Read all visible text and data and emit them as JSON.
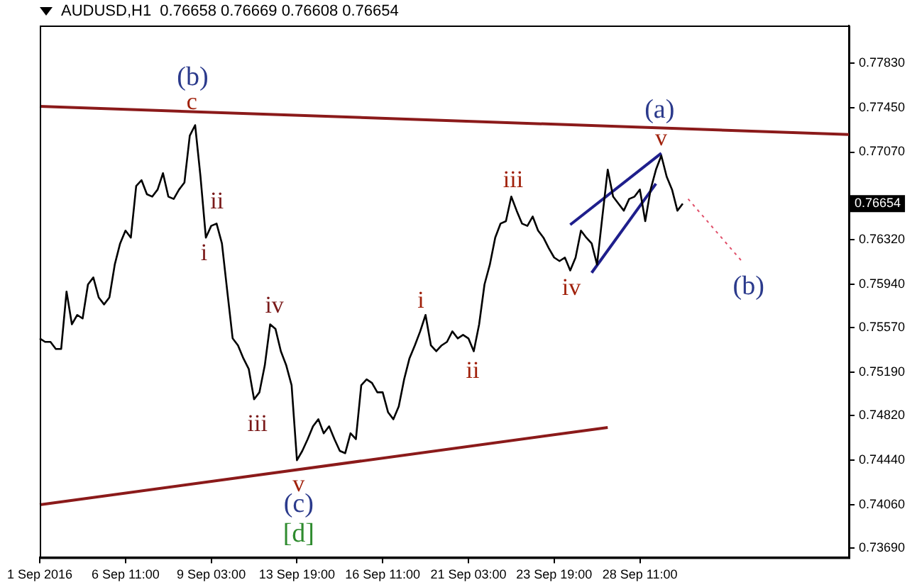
{
  "chart_data": {
    "type": "line",
    "title": "AUDUSD,H1  0.76658 0.76669 0.76608 0.76654",
    "categories": [
      "1 Sep 2016",
      null,
      null,
      null,
      null,
      null,
      null,
      null,
      null,
      null,
      null,
      null,
      null,
      null,
      null,
      null,
      "6 Sep 11:00",
      null,
      null,
      null,
      null,
      null,
      null,
      null,
      null,
      null,
      null,
      null,
      null,
      null,
      null,
      null,
      "9 Sep 03:00",
      null,
      null,
      null,
      null,
      null,
      null,
      null,
      null,
      null,
      null,
      null,
      null,
      null,
      null,
      null,
      "13 Sep 19:00",
      null,
      null,
      null,
      null,
      null,
      null,
      null,
      null,
      null,
      null,
      null,
      null,
      null,
      null,
      null,
      "16 Sep 11:00",
      null,
      null,
      null,
      null,
      null,
      null,
      null,
      null,
      null,
      null,
      null,
      null,
      null,
      null,
      null,
      "21 Sep 03:00",
      null,
      null,
      null,
      null,
      null,
      null,
      null,
      null,
      null,
      null,
      null,
      null,
      null,
      null,
      null,
      "23 Sep 19:00",
      null,
      null,
      null,
      null,
      null,
      null,
      null,
      null,
      null,
      null,
      null,
      null,
      null,
      null,
      null,
      "28 Sep 11:00",
      null,
      null,
      null,
      null,
      null,
      null,
      null,
      null,
      null,
      null,
      null,
      null,
      null,
      null,
      null,
      null,
      null,
      null,
      null,
      null,
      null,
      null,
      null,
      null,
      null,
      null,
      null,
      null,
      null,
      null,
      null,
      null,
      null,
      null,
      null,
      null,
      null,
      null,
      null
    ],
    "ylim": [
      0.7361,
      0.7815
    ],
    "yticks": [
      {
        "value": 0.7783,
        "label": "0.77830"
      },
      {
        "value": 0.7745,
        "label": "0.77450"
      },
      {
        "value": 0.7707,
        "label": "0.77070"
      },
      {
        "value": 0.7669,
        "label": null
      },
      {
        "value": 0.7632,
        "label": "0.76320"
      },
      {
        "value": 0.7594,
        "label": "0.75940"
      },
      {
        "value": 0.7557,
        "label": "0.75570"
      },
      {
        "value": 0.7519,
        "label": "0.75190"
      },
      {
        "value": 0.7482,
        "label": "0.74820"
      },
      {
        "value": 0.7444,
        "label": "0.74440"
      },
      {
        "value": 0.7406,
        "label": "0.74060"
      },
      {
        "value": 0.7369,
        "label": "0.73690"
      }
    ],
    "grid": false,
    "legend": false,
    "marker": "none",
    "series": [
      {
        "color": "#000000",
        "values": [
          0.7548,
          0.7545,
          0.7545,
          0.7539,
          0.7539,
          0.7588,
          0.756,
          0.7568,
          0.7565,
          0.7594,
          0.76,
          0.7583,
          0.7577,
          0.7583,
          0.7611,
          0.7629,
          0.764,
          0.7634,
          0.7678,
          0.7683,
          0.7671,
          0.7669,
          0.7675,
          0.7689,
          0.7669,
          0.7667,
          0.7675,
          0.7681,
          0.7721,
          0.773,
          0.7686,
          0.7634,
          0.7644,
          0.7646,
          0.7629,
          0.7588,
          0.7548,
          0.7542,
          0.7531,
          0.7522,
          0.7496,
          0.7502,
          0.7525,
          0.756,
          0.7556,
          0.7537,
          0.7525,
          0.7508,
          0.7444,
          0.7452,
          0.7462,
          0.7473,
          0.7479,
          0.7467,
          0.7473,
          0.7462,
          0.7452,
          0.745,
          0.7467,
          0.7462,
          0.7508,
          0.7513,
          0.751,
          0.7502,
          0.7502,
          0.7485,
          0.7479,
          0.749,
          0.7513,
          0.7531,
          0.7542,
          0.7554,
          0.7568,
          0.7542,
          0.7537,
          0.7542,
          0.7545,
          0.7554,
          0.7548,
          0.7551,
          0.7548,
          0.7537,
          0.756,
          0.7594,
          0.7611,
          0.7634,
          0.7646,
          0.7648,
          0.7669,
          0.7657,
          0.7646,
          0.7644,
          0.7652,
          0.764,
          0.7634,
          0.7625,
          0.7617,
          0.7614,
          0.7617,
          0.7606,
          0.7617,
          0.764,
          0.7634,
          0.7629,
          0.7611,
          0.7652,
          0.7692,
          0.7669,
          0.7663,
          0.7657,
          0.7667,
          0.7669,
          0.7675,
          0.7648,
          0.7675,
          0.7692,
          0.7704,
          0.7686,
          0.7675,
          0.7657,
          0.7663,
          null,
          null,
          null,
          null,
          null,
          null,
          null,
          null,
          null,
          null,
          null,
          null,
          null,
          null,
          null,
          null,
          null,
          null,
          null,
          null,
          null,
          null,
          null,
          null,
          null,
          null,
          null,
          null,
          null,
          null,
          null
        ]
      },
      {
        "type": "line",
        "color": "#8b1a1a",
        "values": [
          0.7746,
          null,
          null,
          null,
          null,
          null,
          null,
          null,
          null,
          null,
          null,
          null,
          null,
          null,
          null,
          null,
          null,
          null,
          null,
          null,
          null,
          null,
          null,
          null,
          null,
          null,
          null,
          null,
          null,
          null,
          null,
          null,
          null,
          null,
          null,
          null,
          null,
          null,
          null,
          null,
          null,
          null,
          null,
          null,
          null,
          null,
          null,
          null,
          null,
          null,
          null,
          null,
          null,
          null,
          null,
          null,
          null,
          null,
          null,
          null,
          null,
          null,
          null,
          null,
          null,
          null,
          null,
          null,
          null,
          null,
          null,
          null,
          null,
          null,
          null,
          null,
          null,
          null,
          null,
          null,
          null,
          null,
          null,
          null,
          null,
          null,
          null,
          null,
          null,
          null,
          null,
          null,
          null,
          null,
          null,
          null,
          null,
          null,
          null,
          null,
          null,
          null,
          null,
          null,
          null,
          null,
          null,
          null,
          null,
          null,
          null,
          null,
          null,
          null,
          null,
          null,
          null,
          null,
          null,
          null,
          null,
          null,
          null,
          null,
          null,
          null,
          null,
          null,
          null,
          null,
          null,
          null,
          null,
          null,
          null,
          null,
          null,
          null,
          null,
          null,
          null,
          null,
          null,
          null,
          null,
          null,
          null,
          null,
          null,
          null,
          null,
          0.7722
        ]
      },
      {
        "type": "line",
        "color": "#8b1a1a",
        "values": [
          0.7406,
          null,
          null,
          null,
          null,
          null,
          null,
          null,
          null,
          null,
          null,
          null,
          null,
          null,
          null,
          null,
          null,
          null,
          null,
          null,
          null,
          null,
          null,
          null,
          null,
          null,
          null,
          null,
          null,
          null,
          null,
          null,
          null,
          null,
          null,
          null,
          null,
          null,
          null,
          null,
          null,
          null,
          null,
          null,
          null,
          null,
          null,
          null,
          null,
          null,
          null,
          null,
          null,
          null,
          null,
          null,
          null,
          null,
          null,
          null,
          null,
          null,
          null,
          null,
          null,
          null,
          null,
          null,
          null,
          null,
          null,
          null,
          null,
          null,
          null,
          null,
          null,
          null,
          null,
          null,
          null,
          null,
          null,
          null,
          null,
          null,
          null,
          null,
          null,
          null,
          null,
          null,
          null,
          null,
          null,
          null,
          null,
          null,
          null,
          null,
          null,
          null,
          null,
          null,
          null,
          null,
          0.7472,
          null,
          null,
          null,
          null,
          null,
          null,
          null,
          null,
          null,
          null,
          null,
          null,
          null,
          null,
          null,
          null,
          null,
          null,
          null,
          null,
          null,
          null,
          null,
          null,
          null,
          null,
          null,
          null,
          null,
          null,
          null,
          null,
          null,
          null,
          null,
          null,
          null,
          null,
          null,
          null,
          null,
          null,
          null,
          null,
          null
        ]
      },
      {
        "type": "line",
        "color": "#1e1e8c",
        "values": [
          null,
          null,
          null,
          null,
          null,
          null,
          null,
          null,
          null,
          null,
          null,
          null,
          null,
          null,
          null,
          null,
          null,
          null,
          null,
          null,
          null,
          null,
          null,
          null,
          null,
          null,
          null,
          null,
          null,
          null,
          null,
          null,
          null,
          null,
          null,
          null,
          null,
          null,
          null,
          null,
          null,
          null,
          null,
          null,
          null,
          null,
          null,
          null,
          null,
          null,
          null,
          null,
          null,
          null,
          null,
          null,
          null,
          null,
          null,
          null,
          null,
          null,
          null,
          null,
          null,
          null,
          null,
          null,
          null,
          null,
          null,
          null,
          null,
          null,
          null,
          null,
          null,
          null,
          null,
          null,
          null,
          null,
          null,
          null,
          null,
          null,
          null,
          null,
          null,
          null,
          null,
          null,
          null,
          null,
          null,
          null,
          null,
          null,
          null,
          0.7645,
          null,
          null,
          null,
          null,
          null,
          null,
          null,
          null,
          null,
          null,
          null,
          null,
          null,
          null,
          null,
          null,
          0.7706,
          null,
          null,
          null,
          null,
          null,
          null,
          null,
          null,
          null,
          null,
          null,
          null,
          null,
          null,
          null,
          null,
          null,
          null,
          null,
          null,
          null,
          null,
          null,
          null,
          null,
          null,
          null,
          null,
          null,
          null,
          null,
          null,
          null,
          null,
          null
        ]
      },
      {
        "type": "line",
        "color": "#1e1e8c",
        "values": [
          null,
          null,
          null,
          null,
          null,
          null,
          null,
          null,
          null,
          null,
          null,
          null,
          null,
          null,
          null,
          null,
          null,
          null,
          null,
          null,
          null,
          null,
          null,
          null,
          null,
          null,
          null,
          null,
          null,
          null,
          null,
          null,
          null,
          null,
          null,
          null,
          null,
          null,
          null,
          null,
          null,
          null,
          null,
          null,
          null,
          null,
          null,
          null,
          null,
          null,
          null,
          null,
          null,
          null,
          null,
          null,
          null,
          null,
          null,
          null,
          null,
          null,
          null,
          null,
          null,
          null,
          null,
          null,
          null,
          null,
          null,
          null,
          null,
          null,
          null,
          null,
          null,
          null,
          null,
          null,
          null,
          null,
          null,
          null,
          null,
          null,
          null,
          null,
          null,
          null,
          null,
          null,
          null,
          null,
          null,
          null,
          null,
          null,
          null,
          null,
          null,
          null,
          null,
          0.7604,
          null,
          null,
          null,
          null,
          null,
          null,
          null,
          null,
          null,
          null,
          null,
          0.768,
          null,
          null,
          null,
          null,
          null,
          null,
          null,
          null,
          null,
          null,
          null,
          null,
          null,
          null,
          null,
          null,
          null,
          null,
          null,
          null,
          null,
          null,
          null,
          null,
          null,
          null,
          null,
          null,
          null,
          null,
          null,
          null,
          null,
          null,
          null,
          null
        ]
      },
      {
        "type": "line",
        "color": "#e0506a",
        "line_style": "dotted",
        "values": [
          null,
          null,
          null,
          null,
          null,
          null,
          null,
          null,
          null,
          null,
          null,
          null,
          null,
          null,
          null,
          null,
          null,
          null,
          null,
          null,
          null,
          null,
          null,
          null,
          null,
          null,
          null,
          null,
          null,
          null,
          null,
          null,
          null,
          null,
          null,
          null,
          null,
          null,
          null,
          null,
          null,
          null,
          null,
          null,
          null,
          null,
          null,
          null,
          null,
          null,
          null,
          null,
          null,
          null,
          null,
          null,
          null,
          null,
          null,
          null,
          null,
          null,
          null,
          null,
          null,
          null,
          null,
          null,
          null,
          null,
          null,
          null,
          null,
          null,
          null,
          null,
          null,
          null,
          null,
          null,
          null,
          null,
          null,
          null,
          null,
          null,
          null,
          null,
          null,
          null,
          null,
          null,
          null,
          null,
          null,
          null,
          null,
          null,
          null,
          null,
          null,
          null,
          null,
          null,
          null,
          null,
          null,
          null,
          null,
          null,
          null,
          null,
          null,
          null,
          null,
          null,
          null,
          null,
          null,
          null,
          null,
          0.7667,
          null,
          null,
          null,
          null,
          null,
          null,
          null,
          null,
          null,
          0.7614,
          null,
          null,
          null,
          null,
          null,
          null,
          null,
          null,
          null,
          null,
          null,
          null,
          null,
          null,
          null,
          null,
          null,
          null,
          null,
          null
        ]
      }
    ],
    "annotations": [
      "0.76654",
      "(b)",
      "c",
      "ii",
      "i",
      "iv",
      "iii",
      "v",
      "(c)",
      "[d]",
      "i",
      "ii",
      "iii",
      "iv",
      "v",
      "(a)",
      "(b)"
    ]
  }
}
